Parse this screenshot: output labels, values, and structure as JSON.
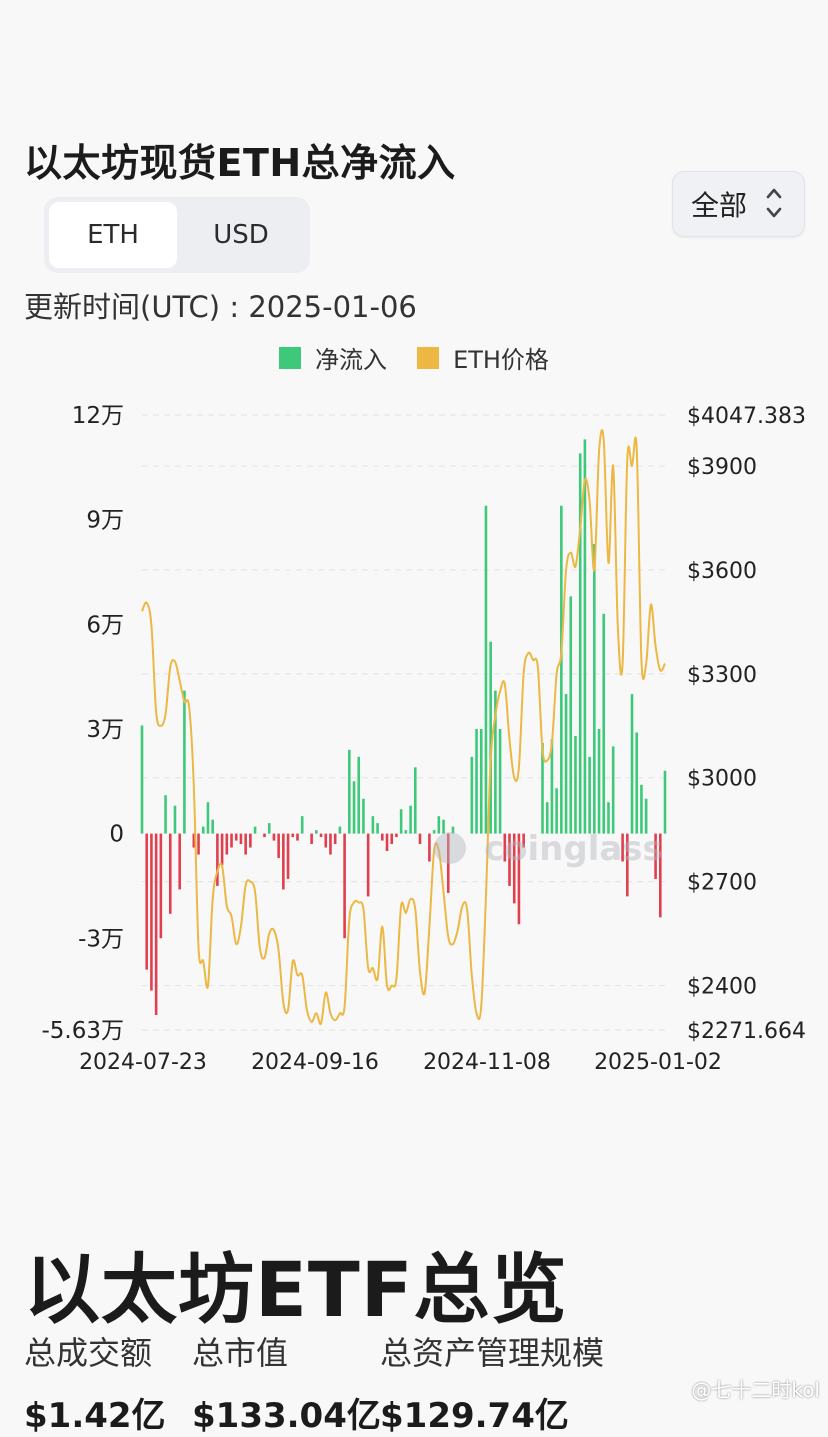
{
  "header": {
    "title": "以太坊现货ETH总净流入",
    "tabs": [
      {
        "label": "ETH",
        "active": true
      },
      {
        "label": "USD",
        "active": false
      }
    ],
    "range_select": "全部",
    "update_time": "更新时间(UTC) : 2025-01-06"
  },
  "chart_data": {
    "type": "bar",
    "legend_position": "top-center",
    "grid": true,
    "watermark": "coinglass",
    "colors": {
      "positive": "#3ec97a",
      "negative": "#e0404e",
      "price": "#ecb843"
    },
    "series": [
      {
        "name": "净流入",
        "type": "bar",
        "axis": "left",
        "values": [
          31000,
          -39000,
          -45000,
          -52000,
          -30000,
          11000,
          -23000,
          8000,
          -16000,
          41000,
          0,
          -4000,
          -6000,
          2000,
          9000,
          4000,
          -15000,
          -9000,
          -6000,
          -4000,
          -2000,
          -3000,
          -6000,
          -4000,
          2000,
          0,
          -1000,
          3000,
          -2000,
          -7000,
          -16000,
          -13000,
          -1000,
          -2000,
          5000,
          0,
          -3000,
          1000,
          -1000,
          -4000,
          -6000,
          -3000,
          2000,
          -30000,
          24000,
          15000,
          22000,
          10000,
          -18000,
          5000,
          3000,
          -2000,
          -5000,
          -3000,
          -1000,
          7000,
          1000,
          8000,
          19000,
          -3000,
          0,
          -8000,
          1000,
          5000,
          4000,
          -17000,
          2000,
          0,
          0,
          0,
          22000,
          30000,
          30000,
          94000,
          55000,
          41000,
          30000,
          -8000,
          -15000,
          -20000,
          -26000,
          -4000,
          0,
          0,
          0,
          26000,
          9000,
          27000,
          13000,
          94000,
          40000,
          68000,
          28000,
          109000,
          113000,
          22000,
          83000,
          30000,
          63000,
          9000,
          25000,
          0,
          -8000,
          -18000,
          40000,
          29000,
          14000,
          10000,
          0,
          -13000,
          -24000,
          18000
        ]
      },
      {
        "name": "ETH价格",
        "type": "line",
        "axis": "right",
        "values": [
          3481,
          3505,
          3440,
          3190,
          3150,
          3185,
          3320,
          3335,
          3280,
          3220,
          3205,
          2975,
          2510,
          2470,
          2400,
          2650,
          2730,
          2745,
          2630,
          2600,
          2520,
          2570,
          2690,
          2700,
          2670,
          2510,
          2480,
          2550,
          2560,
          2500,
          2350,
          2330,
          2470,
          2430,
          2430,
          2330,
          2295,
          2320,
          2290,
          2380,
          2320,
          2300,
          2320,
          2340,
          2590,
          2640,
          2640,
          2620,
          2450,
          2450,
          2420,
          2570,
          2400,
          2400,
          2420,
          2630,
          2610,
          2650,
          2620,
          2440,
          2380,
          2570,
          2790,
          2790,
          2670,
          2540,
          2520,
          2560,
          2630,
          2620,
          2430,
          2320,
          2340,
          2660,
          3050,
          3180,
          3250,
          3270,
          3110,
          3000,
          3030,
          3300,
          3360,
          3340,
          3320,
          3080,
          3050,
          3100,
          3300,
          3360,
          3600,
          3650,
          3610,
          3720,
          3860,
          3800,
          3600,
          3940,
          3975,
          3620,
          3900,
          3430,
          3330,
          3920,
          3900,
          3950,
          3340,
          3330,
          3500,
          3380,
          3310,
          3330
        ]
      }
    ],
    "x_tick_labels": [
      "2024-07-23",
      "2024-09-16",
      "2024-11-08",
      "2025-01-02"
    ],
    "y_left": {
      "ticks": [
        120000,
        90000,
        60000,
        30000,
        0,
        -30000,
        -56300
      ],
      "tick_labels": [
        "12万",
        "9万",
        "6万",
        "3万",
        "0",
        "-3万",
        "-5.63万"
      ],
      "range": [
        -56300,
        120000
      ]
    },
    "y_right": {
      "ticks": [
        4047.383,
        3900,
        3600,
        3300,
        3000,
        2700,
        2400,
        2271.664
      ],
      "tick_labels": [
        "$4047.383",
        "$3900",
        "$3600",
        "$3300",
        "$3000",
        "$2700",
        "$2400",
        "$2271.664"
      ],
      "range": [
        2271.664,
        4047.383
      ]
    }
  },
  "overview": {
    "title": "以太坊ETF总览",
    "stats": [
      {
        "label": "总成交额",
        "value": "$1.42亿"
      },
      {
        "label": "总市值",
        "value": "$133.04亿"
      },
      {
        "label": "总资产管理规模",
        "value": "$129.74亿"
      }
    ]
  },
  "footer_watermark": "@七十二时kol"
}
